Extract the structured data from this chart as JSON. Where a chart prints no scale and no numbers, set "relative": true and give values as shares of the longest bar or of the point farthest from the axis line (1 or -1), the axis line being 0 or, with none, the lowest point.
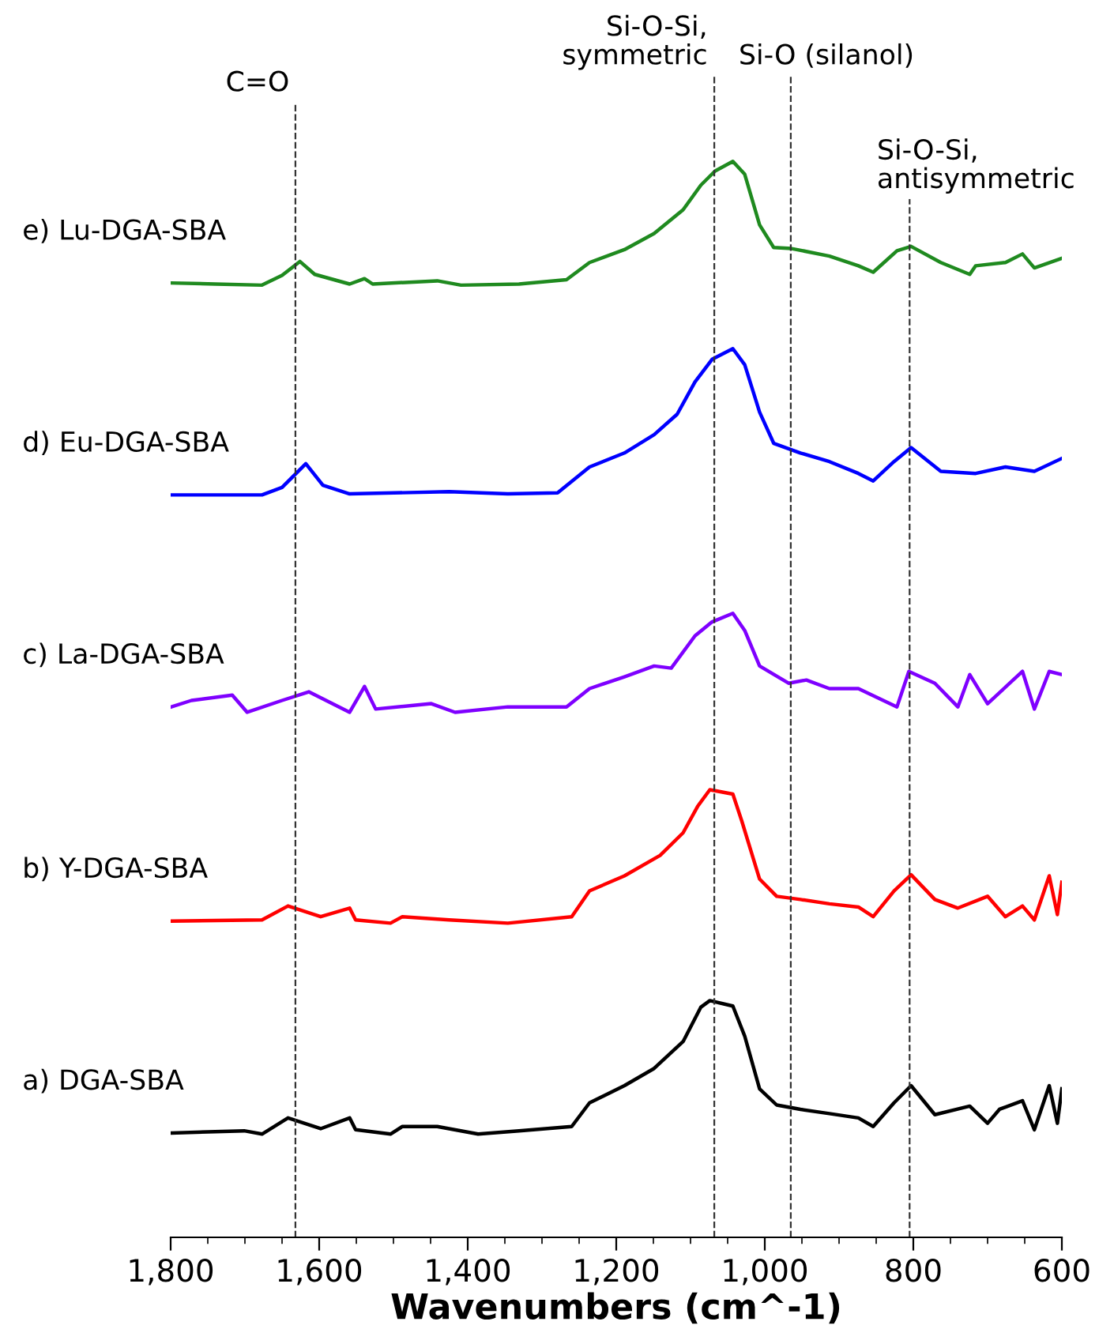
{
  "chart_data": {
    "type": "line",
    "relative": true,
    "xlabel": "Wavenumbers (cm^-1)",
    "xlim": [
      1800,
      600
    ],
    "xticks": [
      {
        "value": 1800,
        "label": "1,800"
      },
      {
        "value": 1600,
        "label": "1,600"
      },
      {
        "value": 1400,
        "label": "1,400"
      },
      {
        "value": 1200,
        "label": "1,200"
      },
      {
        "value": 1000,
        "label": "1,000"
      },
      800,
      600
    ],
    "tick_labels": "x",
    "grid": false,
    "legend": false,
    "marker": "none",
    "line_style": "solid",
    "ref_lines": [
      {
        "axis": "x",
        "value": 1632,
        "label": "C=O",
        "color": "#333333",
        "line_style": "dashed"
      },
      {
        "axis": "x",
        "value": 1068,
        "label": "Si-O-Si,\nsymmetric",
        "color": "#333333",
        "line_style": "dashed"
      },
      {
        "axis": "x",
        "value": 965,
        "label": "Si-O (silanol)",
        "color": "#333333",
        "line_style": "dashed"
      },
      {
        "axis": "x",
        "value": 805,
        "label": "Si-O-Si,\nantisymmetric",
        "color": "#333333",
        "line_style": "dashed"
      }
    ],
    "series": [
      {
        "name": "a) DGA-SBA",
        "color": "#000000",
        "x": [
          1799,
          1701,
          1677,
          1642,
          1598,
          1559,
          1551,
          1504,
          1488,
          1441,
          1386,
          1331,
          1260,
          1236,
          1189,
          1149,
          1110,
          1086,
          1074,
          1043,
          1027,
          1007,
          984,
          952,
          913,
          874,
          854,
          826,
          803,
          771,
          724,
          700,
          684,
          653,
          637,
          617,
          606,
          600
        ],
        "values": [
          0.097,
          0.099,
          0.096,
          0.111,
          0.101,
          0.111,
          0.1,
          0.096,
          0.103,
          0.103,
          0.096,
          0.099,
          0.103,
          0.125,
          0.141,
          0.157,
          0.182,
          0.214,
          0.22,
          0.215,
          0.187,
          0.138,
          0.123,
          0.119,
          0.115,
          0.111,
          0.103,
          0.125,
          0.141,
          0.114,
          0.122,
          0.106,
          0.119,
          0.127,
          0.1,
          0.141,
          0.106,
          0.138
        ]
      },
      {
        "name": "b) Y-DGA-SBA",
        "color": "#ff0000",
        "x": [
          1799,
          1677,
          1642,
          1598,
          1559,
          1551,
          1504,
          1488,
          1425,
          1346,
          1260,
          1236,
          1189,
          1141,
          1110,
          1090,
          1074,
          1043,
          1031,
          1007,
          984,
          952,
          913,
          874,
          854,
          826,
          803,
          771,
          740,
          700,
          676,
          653,
          637,
          617,
          606,
          600
        ],
        "values": [
          0.294,
          0.295,
          0.308,
          0.298,
          0.306,
          0.295,
          0.292,
          0.298,
          0.295,
          0.292,
          0.298,
          0.322,
          0.336,
          0.355,
          0.376,
          0.401,
          0.416,
          0.412,
          0.387,
          0.333,
          0.317,
          0.314,
          0.31,
          0.307,
          0.298,
          0.322,
          0.337,
          0.314,
          0.306,
          0.317,
          0.298,
          0.308,
          0.295,
          0.336,
          0.3,
          0.33
        ]
      },
      {
        "name": "c) La-DGA-SBA",
        "color": "#7f00ff",
        "x": [
          1799,
          1772,
          1717,
          1697,
          1650,
          1614,
          1559,
          1539,
          1524,
          1449,
          1417,
          1346,
          1267,
          1236,
          1189,
          1149,
          1126,
          1094,
          1071,
          1043,
          1027,
          1007,
          968,
          944,
          913,
          874,
          822,
          806,
          771,
          740,
          724,
          700,
          653,
          637,
          617,
          600
        ],
        "values": [
          0.493,
          0.499,
          0.504,
          0.488,
          0.499,
          0.507,
          0.488,
          0.512,
          0.491,
          0.496,
          0.488,
          0.493,
          0.493,
          0.51,
          0.521,
          0.531,
          0.529,
          0.559,
          0.572,
          0.58,
          0.564,
          0.531,
          0.515,
          0.518,
          0.51,
          0.51,
          0.493,
          0.526,
          0.515,
          0.493,
          0.523,
          0.496,
          0.526,
          0.491,
          0.526,
          0.523
        ]
      },
      {
        "name": "d) Eu-DGA-SBA",
        "color": "#0000ff",
        "x": [
          1799,
          1677,
          1650,
          1618,
          1595,
          1559,
          1425,
          1346,
          1279,
          1236,
          1189,
          1149,
          1118,
          1094,
          1071,
          1043,
          1027,
          1007,
          988,
          952,
          913,
          874,
          854,
          826,
          803,
          763,
          716,
          676,
          637,
          600
        ],
        "values": [
          0.69,
          0.69,
          0.697,
          0.719,
          0.699,
          0.691,
          0.693,
          0.691,
          0.692,
          0.716,
          0.729,
          0.746,
          0.765,
          0.795,
          0.816,
          0.826,
          0.811,
          0.767,
          0.738,
          0.729,
          0.721,
          0.71,
          0.703,
          0.721,
          0.734,
          0.712,
          0.71,
          0.716,
          0.712,
          0.724
        ]
      },
      {
        "name": "e) Lu-DGA-SBA",
        "color": "#1f8a1f",
        "x": [
          1799,
          1740,
          1677,
          1650,
          1626,
          1606,
          1559,
          1539,
          1528,
          1441,
          1409,
          1331,
          1267,
          1236,
          1189,
          1149,
          1110,
          1086,
          1067,
          1043,
          1027,
          1007,
          988,
          964,
          913,
          874,
          854,
          822,
          803,
          763,
          724,
          716,
          676,
          653,
          637,
          600
        ],
        "values": [
          0.887,
          0.886,
          0.885,
          0.894,
          0.907,
          0.895,
          0.886,
          0.891,
          0.886,
          0.889,
          0.885,
          0.886,
          0.89,
          0.906,
          0.918,
          0.933,
          0.955,
          0.978,
          0.991,
          1.0,
          0.988,
          0.941,
          0.92,
          0.919,
          0.912,
          0.903,
          0.897,
          0.917,
          0.921,
          0.906,
          0.895,
          0.903,
          0.906,
          0.914,
          0.901,
          0.91
        ]
      }
    ]
  }
}
